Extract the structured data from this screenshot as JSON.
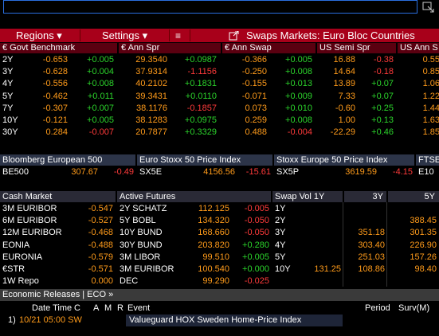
{
  "menu": {
    "regions": "Regions ▾",
    "settings": "Settings ▾",
    "title": "Swaps Markets: Euro Bloc Countries"
  },
  "benchmarks": {
    "headers": [
      "€ Govt Benchmark",
      "€ Ann Spr",
      "€ Ann Swap",
      "US Semi Spr",
      "US Ann S"
    ],
    "rows": [
      [
        "2Y",
        "-0.653",
        "+0.005",
        "29.3540",
        "+0.0987",
        "-0.366",
        "+0.005",
        "16.88",
        "-0.38",
        "0.55"
      ],
      [
        "3Y",
        "-0.628",
        "+0.004",
        "37.9314",
        "-1.1156",
        "-0.250",
        "+0.008",
        "14.64",
        "-0.18",
        "0.85"
      ],
      [
        "4Y",
        "-0.556",
        "+0.008",
        "40.2102",
        "+0.1831",
        "-0.155",
        "+0.013",
        "13.89",
        "+0.07",
        "1.06"
      ],
      [
        "5Y",
        "-0.462",
        "+0.011",
        "39.3431",
        "+0.0110",
        "-0.071",
        "+0.009",
        "7.33",
        "+0.07",
        "1.22"
      ],
      [
        "7Y",
        "-0.307",
        "+0.007",
        "38.1176",
        "-0.1857",
        "0.073",
        "+0.010",
        "-0.60",
        "+0.25",
        "1.44"
      ],
      [
        "10Y",
        "-0.121",
        "+0.005",
        "38.1283",
        "+0.0975",
        "0.259",
        "+0.008",
        "1.00",
        "+0.13",
        "1.63"
      ],
      [
        "30Y",
        "0.284",
        "-0.007",
        "20.7877",
        "+0.3329",
        "0.488",
        "-0.004",
        "-22.29",
        "+0.46",
        "1.85"
      ]
    ]
  },
  "indices": [
    {
      "name": "Bloomberg European 500",
      "ticker": "BE500",
      "value": "307.67",
      "change": "-0.49"
    },
    {
      "name": "Euro Stoxx 50 Price Index",
      "ticker": "SX5E",
      "value": "4156.56",
      "change": "-15.61"
    },
    {
      "name": "Stoxx Europe 50 Price Index",
      "ticker": "SX5P",
      "value": "3619.59",
      "change": "-4.15"
    },
    {
      "name": "FTSE",
      "ticker": "E10"
    }
  ],
  "cash_market": {
    "header": "Cash Market",
    "rows": [
      [
        "3M EURIBOR",
        "-0.547"
      ],
      [
        "6M EURIBOR",
        "-0.527"
      ],
      [
        "12M EURIBOR",
        "-0.468"
      ],
      [
        "EONIA",
        "-0.488"
      ],
      [
        "EURONIA",
        "-0.579"
      ],
      [
        "€STR",
        "-0.571"
      ],
      [
        "1W Repo",
        "0.000"
      ]
    ]
  },
  "futures": {
    "header": "Active Futures",
    "rows": [
      [
        "2Y SCHATZ",
        "112.125",
        "-0.005"
      ],
      [
        "5Y BOBL",
        "134.320",
        "-0.050"
      ],
      [
        "10Y BUND",
        "168.660",
        "-0.050"
      ],
      [
        "30Y BUND",
        "203.820",
        "+0.280"
      ],
      [
        "3M LIBOR",
        "99.510",
        "+0.005"
      ],
      [
        "3M EURIBOR",
        "100.540",
        "+0.000"
      ],
      [
        "DEC",
        "99.290",
        "-0.025"
      ]
    ]
  },
  "swap_vol": {
    "headers": [
      "Swap Vol 1Y",
      "3Y",
      "5Y"
    ],
    "rows": [
      [
        "1Y",
        null,
        null,
        null
      ],
      [
        "2Y",
        null,
        null,
        "388.45"
      ],
      [
        "3Y",
        null,
        "351.18",
        "301.35"
      ],
      [
        "4Y",
        null,
        "303.40",
        "226.90"
      ],
      [
        "5Y",
        null,
        "251.03",
        "157.26"
      ],
      [
        "10Y",
        "131.25",
        "108.86",
        "98.40"
      ]
    ]
  },
  "eco": {
    "title": "Economic Releases | ECO »",
    "columns": [
      "Date Time",
      "C",
      "A",
      "M",
      "R",
      "Event",
      "Period",
      "Surv(M)"
    ],
    "rows": [
      [
        "1)",
        "10/21 05:00 SW",
        "Valueguard HOX Sweden Home-Price Index"
      ]
    ]
  }
}
